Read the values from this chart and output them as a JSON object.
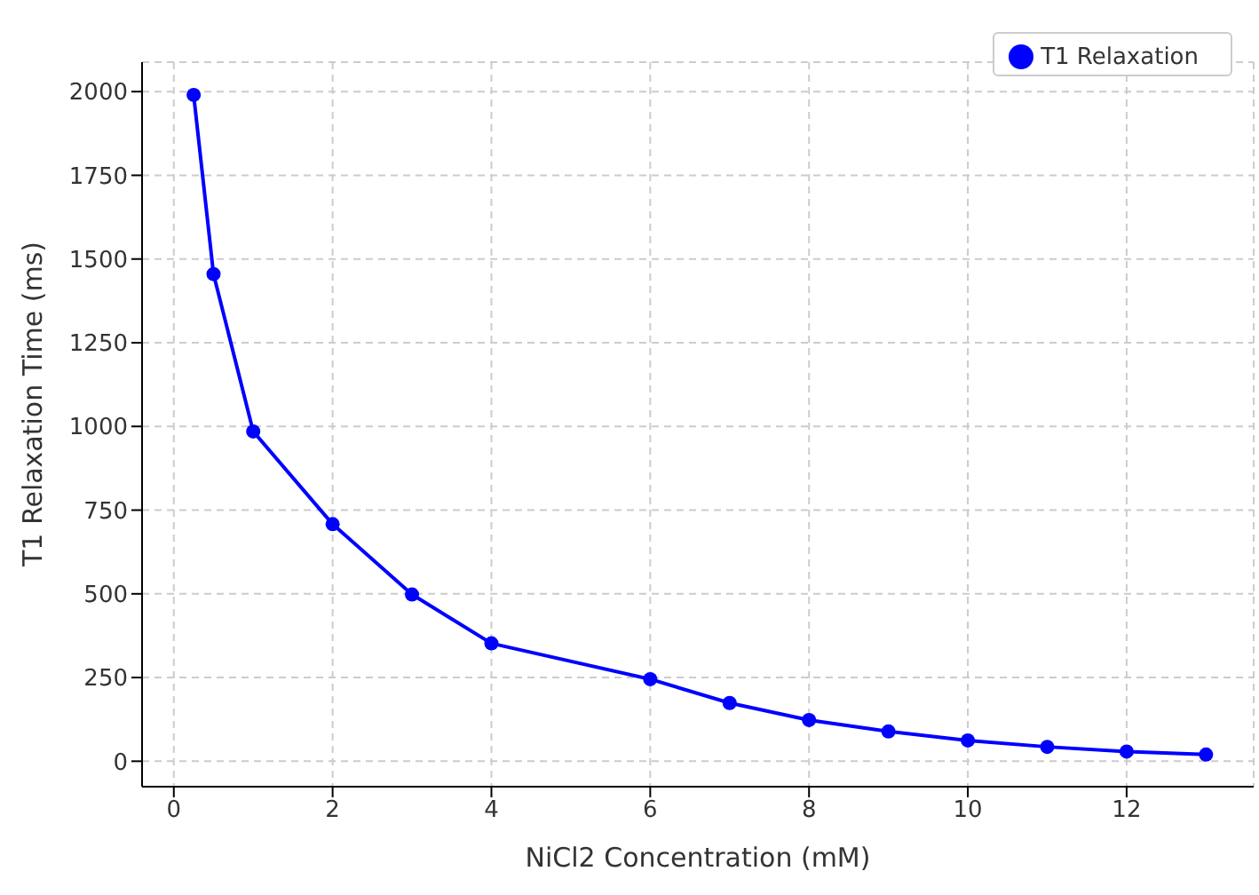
{
  "chart_data": {
    "type": "line",
    "xlabel": "NiCl2 Concentration (mM)",
    "ylabel": "T1 Relaxation Time (ms)",
    "x": [
      0.25,
      0.5,
      1,
      2,
      3,
      4,
      6,
      7,
      8,
      9,
      10,
      11,
      12,
      13
    ],
    "series": [
      {
        "name": "T1 Relaxation",
        "color": "#0000ff",
        "values": [
          1990,
          1455,
          985,
          708,
          498,
          352,
          245,
          174,
          123,
          89,
          62,
          43,
          29,
          20
        ]
      }
    ],
    "xlim": [
      -0.4,
      13.6
    ],
    "ylim": [
      -76,
      2088
    ],
    "xticks": [
      0,
      2,
      4,
      6,
      8,
      10,
      12
    ],
    "yticks": [
      0,
      250,
      500,
      750,
      1000,
      1250,
      1500,
      1750,
      2000
    ],
    "grid": true,
    "legend": "top right",
    "marker": "circle",
    "line_style": "solid"
  }
}
